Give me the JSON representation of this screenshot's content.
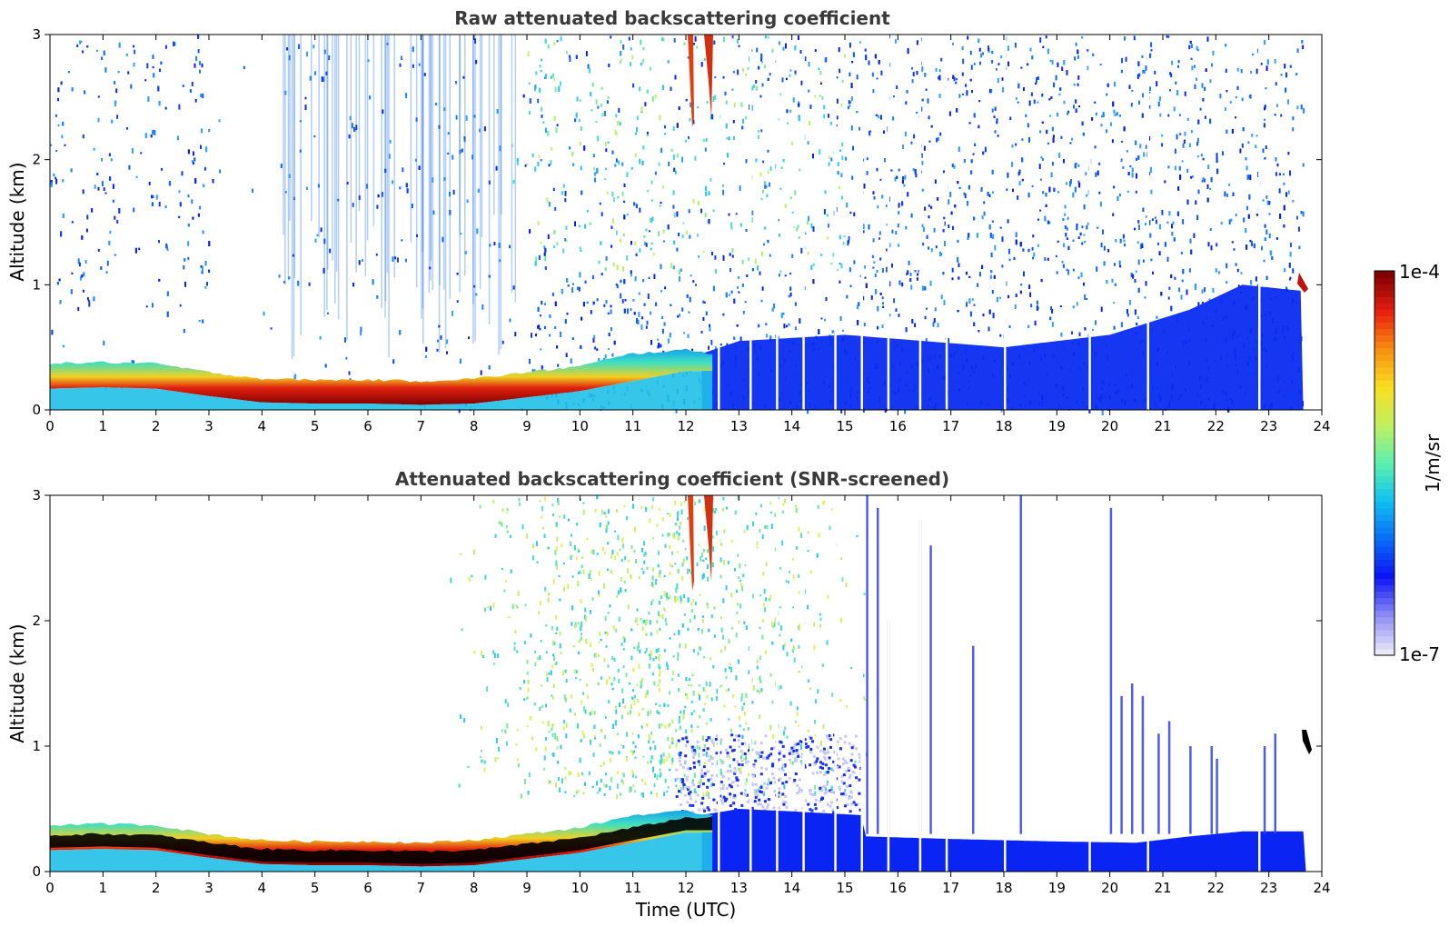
{
  "chart_data": [
    {
      "type": "heatmap",
      "title": "Raw attenuated backscattering coefficient",
      "xlabel": "",
      "ylabel": "Altitude (km)",
      "xlim": [
        0,
        24
      ],
      "ylim": [
        0,
        3
      ],
      "xticks": [
        "0",
        "1",
        "2",
        "3",
        "4",
        "5",
        "6",
        "7",
        "8",
        "9",
        "10",
        "11",
        "12",
        "13",
        "14",
        "15",
        "16",
        "17",
        "18",
        "19",
        "20",
        "21",
        "22",
        "23",
        "24"
      ],
      "yticks": [
        "0",
        "1",
        "2",
        "3"
      ],
      "layer_top_km": [
        [
          0,
          0.37
        ],
        [
          1,
          0.38
        ],
        [
          2,
          0.37
        ],
        [
          3,
          0.3
        ],
        [
          4,
          0.25
        ],
        [
          5,
          0.24
        ],
        [
          6,
          0.24
        ],
        [
          7,
          0.23
        ],
        [
          8,
          0.25
        ],
        [
          9,
          0.3
        ],
        [
          10,
          0.35
        ],
        [
          11,
          0.45
        ],
        [
          12,
          0.48
        ],
        [
          12.5,
          0.45
        ]
      ],
      "layer_core_km": [
        [
          0,
          0.24
        ],
        [
          1,
          0.25
        ],
        [
          2,
          0.24
        ],
        [
          3,
          0.18
        ],
        [
          4,
          0.13
        ],
        [
          5,
          0.12
        ],
        [
          6,
          0.12
        ],
        [
          7,
          0.11
        ],
        [
          8,
          0.12
        ],
        [
          9,
          0.17
        ],
        [
          10,
          0.22
        ],
        [
          11,
          0.3
        ],
        [
          12,
          0.38
        ],
        [
          12.5,
          0.38
        ]
      ],
      "data_gap_times_h": [
        12.6,
        13.2,
        13.7,
        14.2,
        14.8,
        15.3,
        15.8,
        16.4,
        16.9,
        18.0,
        19.6,
        20.7,
        22.8
      ]
    },
    {
      "type": "heatmap",
      "title": "Attenuated backscattering coefficient (SNR-screened)",
      "xlabel": "Time (UTC)",
      "ylabel": "Altitude (km)",
      "xlim": [
        0,
        24
      ],
      "ylim": [
        0,
        3
      ],
      "xticks": [
        "0",
        "1",
        "2",
        "3",
        "4",
        "5",
        "6",
        "7",
        "8",
        "9",
        "10",
        "11",
        "12",
        "13",
        "14",
        "15",
        "16",
        "17",
        "18",
        "19",
        "20",
        "21",
        "22",
        "23",
        "24"
      ],
      "yticks": [
        "0",
        "1",
        "2",
        "3"
      ],
      "screened_boundary_km": [
        [
          15.4,
          0.28
        ],
        [
          17,
          0.26
        ],
        [
          19,
          0.24
        ],
        [
          20.5,
          0.23
        ],
        [
          21.5,
          0.28
        ],
        [
          22.5,
          0.32
        ],
        [
          23.7,
          0.32
        ]
      ]
    }
  ],
  "colorbar": {
    "max_label": "1e-4",
    "min_label": "1e-7",
    "label": "1/m/sr",
    "colors": [
      "#e8e8f8",
      "#8a8af4",
      "#0a14f4",
      "#0a6cf8",
      "#10c0f0",
      "#5cf0b0",
      "#c0f060",
      "#f8e020",
      "#f89010",
      "#e82010",
      "#800000"
    ]
  }
}
